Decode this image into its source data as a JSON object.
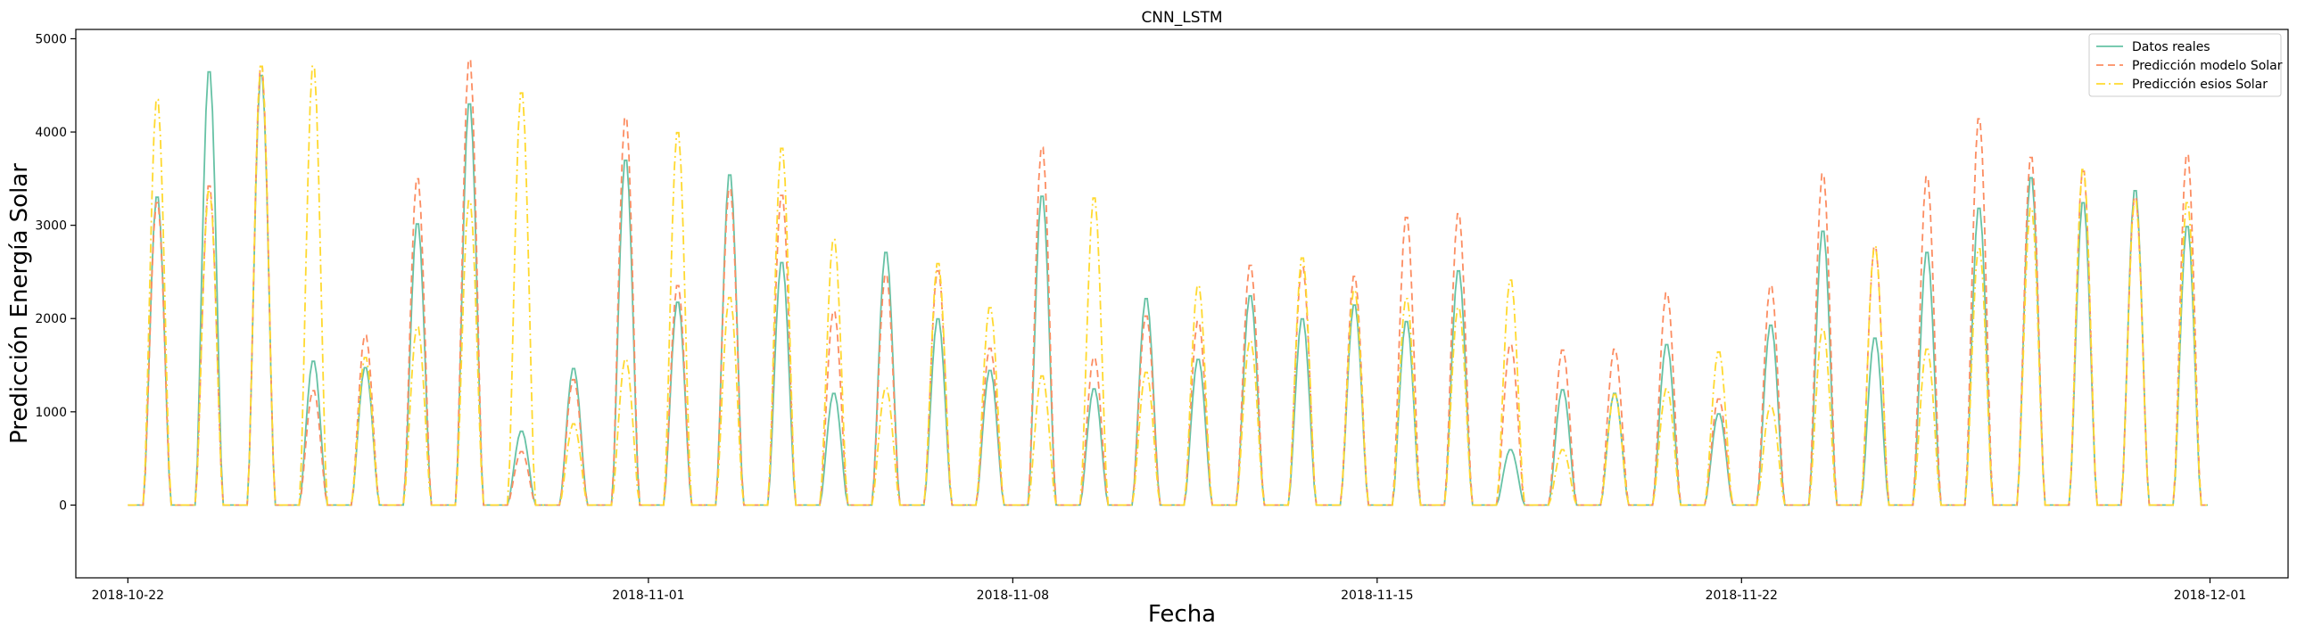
{
  "chart_data": {
    "type": "line",
    "title": "CNN_LSTM",
    "xlabel": "Fecha",
    "ylabel": "Predicción Energía Solar",
    "x_start": "2018-10-22",
    "x_ticks": [
      "2018-10-22",
      "2018-11-01",
      "2018-11-08",
      "2018-11-15",
      "2018-11-22",
      "2018-12-01"
    ],
    "xlim": [
      "2018-10-21T00:00",
      "2018-12-02T12:00"
    ],
    "y_ticks": [
      0,
      1000,
      2000,
      3000,
      4000,
      5000
    ],
    "ylim": [
      -780,
      5100
    ],
    "grid": false,
    "legend_position": "top-right",
    "series": [
      {
        "name": "Datos reales",
        "color": "#66c2a5",
        "style": "solid",
        "daily_peak": [
          3340,
          4700,
          4660,
          1560,
          1490,
          3050,
          4350,
          800,
          1480,
          3740,
          2200,
          3580,
          2630,
          1210,
          2740,
          2020,
          1460,
          3350,
          1260,
          2240,
          1580,
          2270,
          2020,
          2170,
          1990,
          2540,
          600,
          1250,
          1210,
          1740,
          990,
          1950,
          2970,
          1810,
          2740,
          3220,
          3550,
          3280,
          3410,
          3020
        ]
      },
      {
        "name": "Predicción modelo Solar",
        "color": "#fc8d62",
        "style": "dashed",
        "daily_peak": [
          3280,
          3460,
          4760,
          1240,
          1840,
          3540,
          4830,
          580,
          1360,
          4200,
          2380,
          3430,
          3360,
          2100,
          2500,
          2540,
          1700,
          3880,
          1600,
          2050,
          1990,
          2600,
          2580,
          2480,
          3120,
          3160,
          1740,
          1680,
          1690,
          2300,
          1150,
          2380,
          3590,
          2800,
          3560,
          4190,
          3770,
          3620,
          3340,
          3800
        ]
      },
      {
        "name": "Predicción esios Solar",
        "color": "#ffd92f",
        "style": "dashdot",
        "daily_peak": [
          4400,
          3400,
          4760,
          4760,
          1600,
          1930,
          3300,
          4470,
          880,
          1580,
          4040,
          2250,
          3870,
          2880,
          1270,
          2620,
          2140,
          1400,
          3330,
          1440,
          2380,
          1780,
          2680,
          2330,
          2240,
          2140,
          2440,
          600,
          1200,
          1260,
          1660,
          1080,
          1910,
          2800,
          1690,
          2780,
          3220,
          3640,
          3310,
          3280
        ]
      }
    ]
  }
}
